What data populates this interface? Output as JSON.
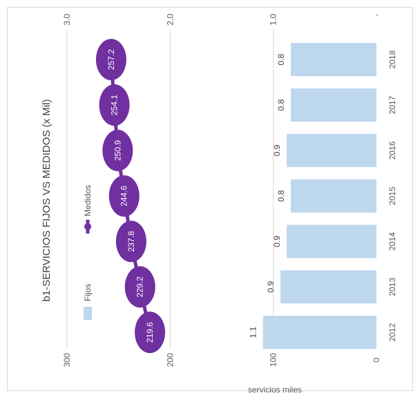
{
  "chart_data": {
    "type": "bar",
    "title": "b1-SERVICIOS FIJOS VS MEDIDOS (x Mil)",
    "ylabel": "servicios miles",
    "categories": [
      "2012",
      "2013",
      "2014",
      "2015",
      "2016",
      "2017",
      "2018"
    ],
    "bar_axis": {
      "ticks": [
        "0",
        "100",
        "200",
        "300"
      ],
      "range": [
        0,
        300
      ]
    },
    "secondary_axis": {
      "ticks": [
        "-",
        "1.0",
        "2.0",
        "3.0"
      ],
      "range": [
        0,
        3
      ]
    },
    "series": [
      {
        "name": "Fijos",
        "kind": "bar",
        "values": [
          110,
          93,
          87,
          83,
          87,
          83,
          83
        ],
        "labels": [
          "1.1",
          "0.9",
          "0.9",
          "0.8",
          "0.9",
          "0.8",
          "0.8"
        ],
        "color": "#bdd7ee"
      },
      {
        "name": "Medidos",
        "kind": "line",
        "values": [
          219.6,
          229.2,
          237.8,
          244.6,
          250.9,
          254.1,
          257.2
        ],
        "labels": [
          "219.6",
          "229.2",
          "237.8",
          "244.6",
          "250.9",
          "254.1",
          "257.2"
        ],
        "color": "#7030a0"
      }
    ],
    "legend": {
      "position": "left",
      "items": [
        "Fijos",
        "Medidos"
      ]
    },
    "grid": true,
    "orientation": "rotated 90 degrees clockwise"
  }
}
